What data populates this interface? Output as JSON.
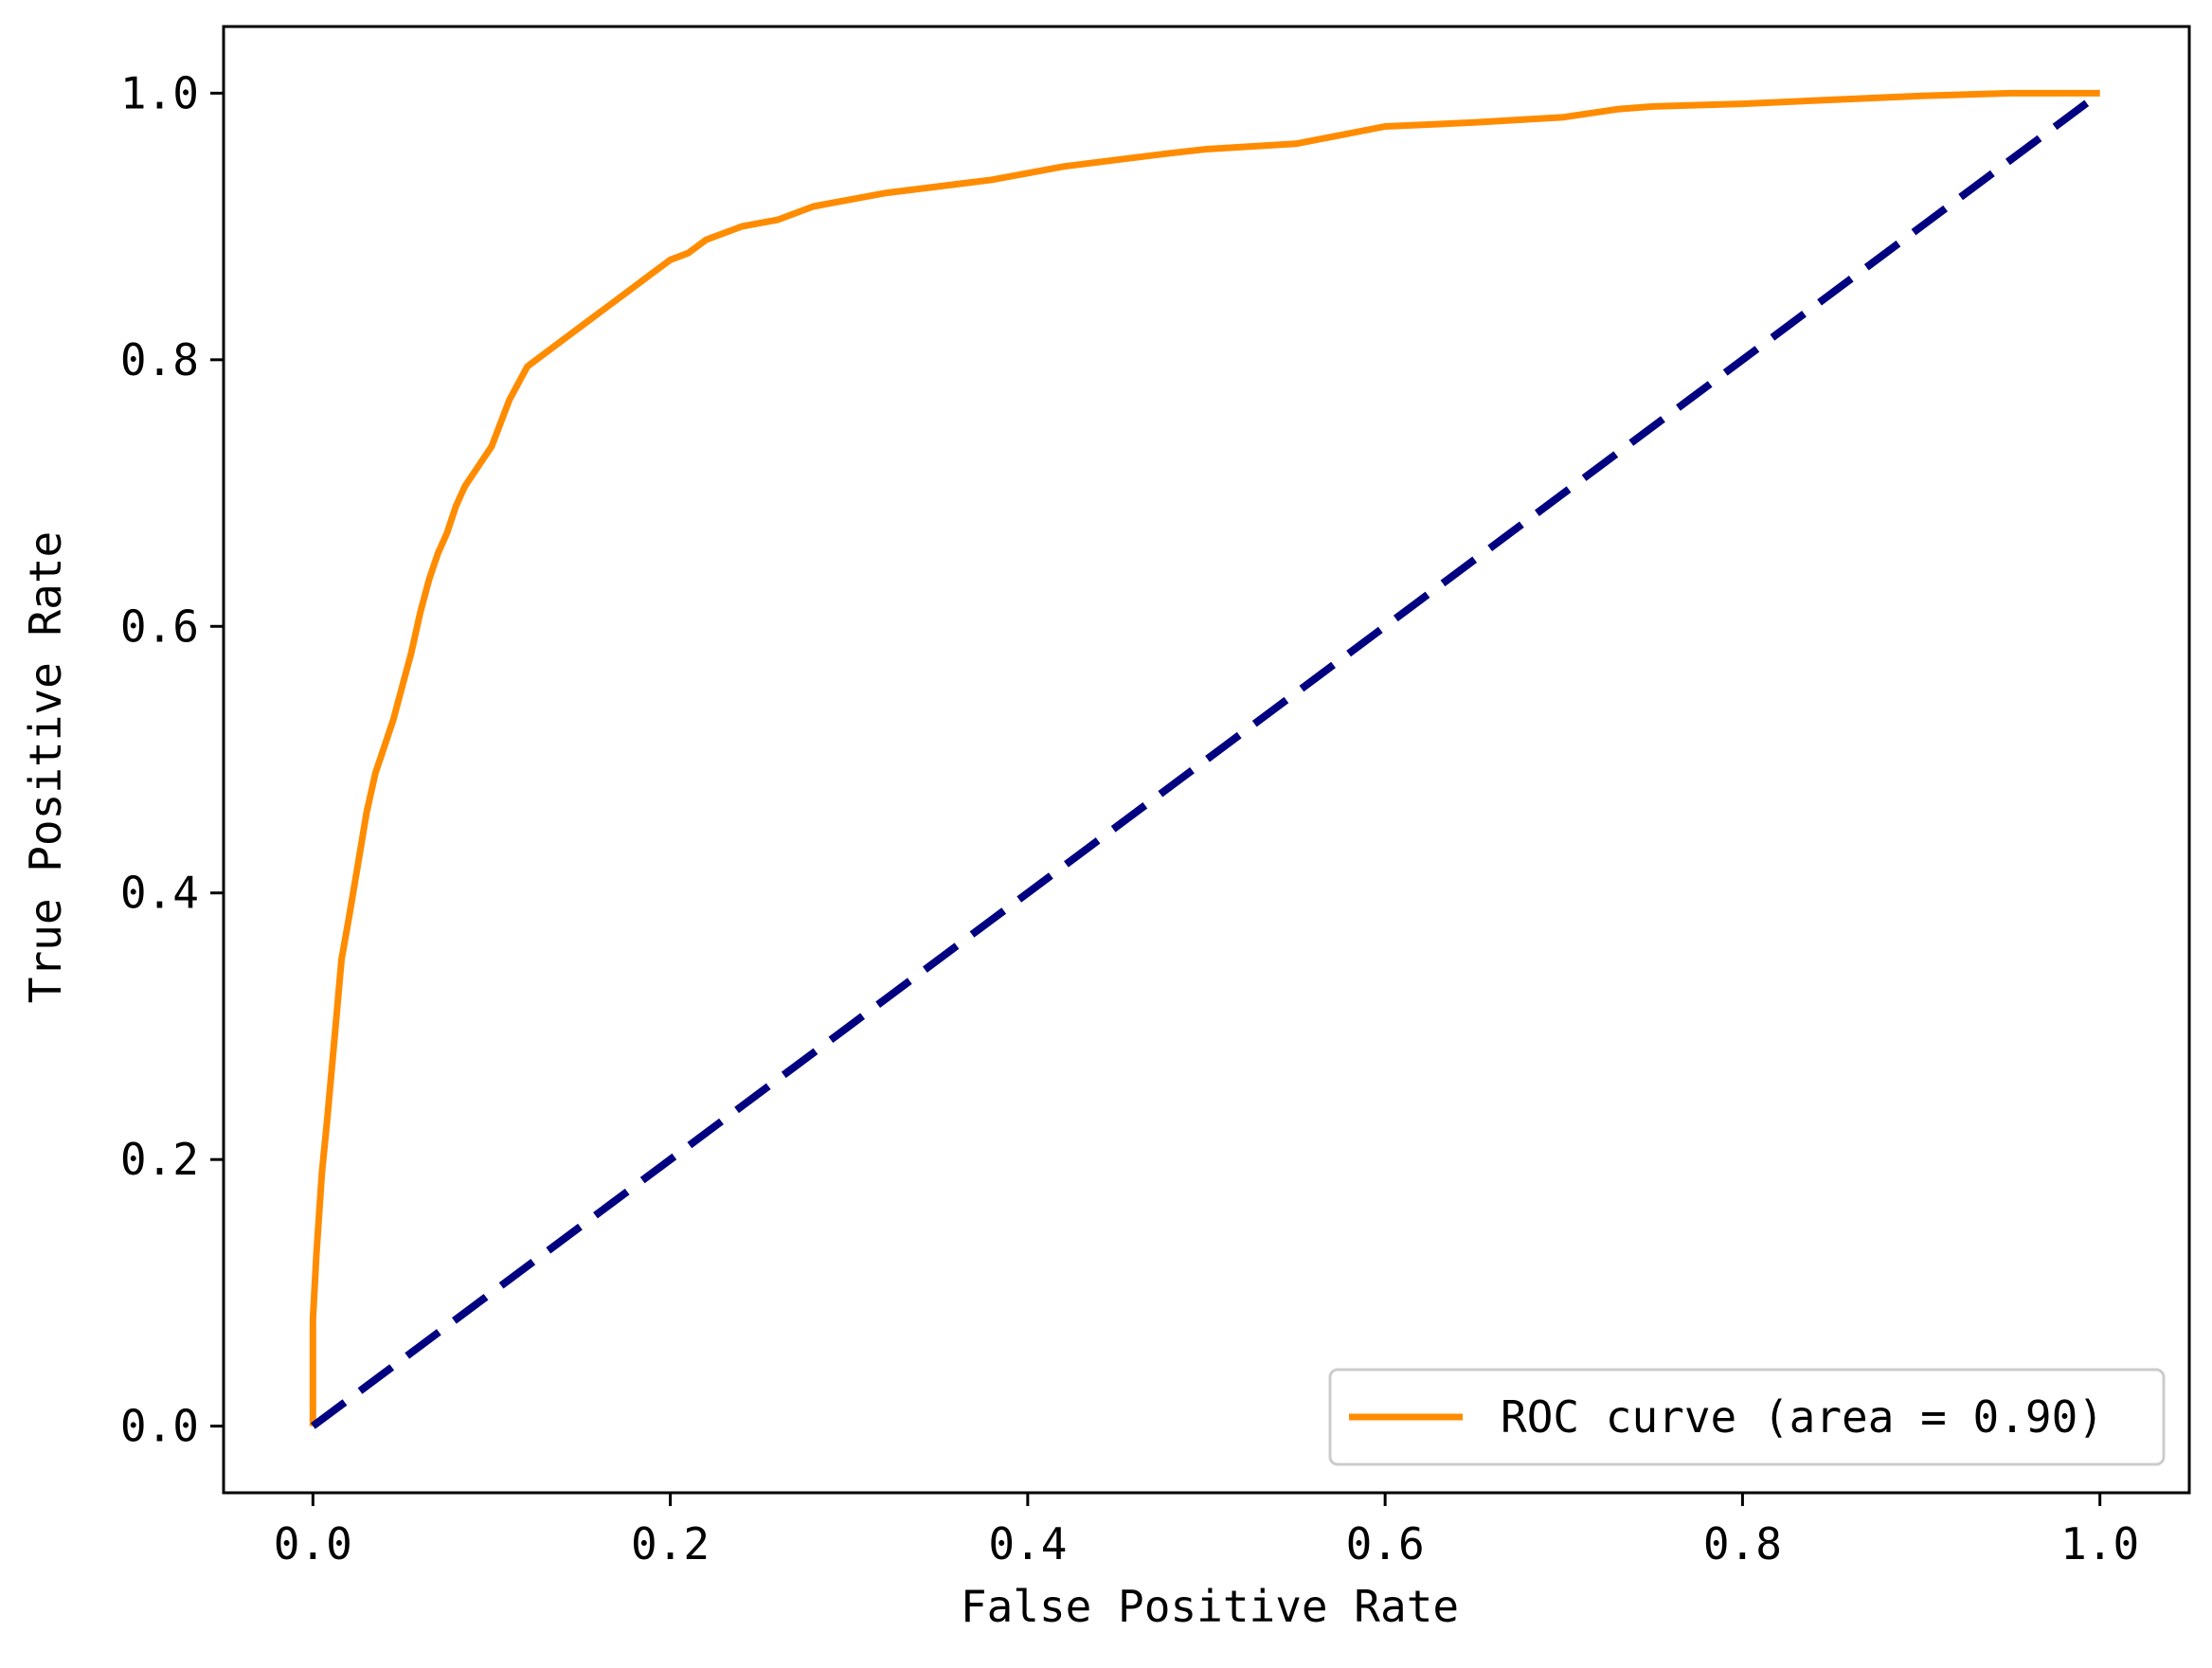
{
  "chart_data": {
    "type": "line",
    "title": "",
    "xlabel": "False Positive Rate",
    "ylabel": "True Positive Rate",
    "xlim": [
      -0.05,
      1.05
    ],
    "ylim": [
      -0.05,
      1.05
    ],
    "xticks": [
      "0.0",
      "0.2",
      "0.4",
      "0.6",
      "0.8",
      "1.0"
    ],
    "yticks": [
      "0.0",
      "0.2",
      "0.4",
      "0.6",
      "0.8",
      "1.0"
    ],
    "grid": false,
    "legend_position": "lower-right",
    "series": [
      {
        "name": "ROC curve (area = 0.90)",
        "color": "#ff8c00",
        "style": "solid",
        "x": [
          0.0,
          0.0,
          0.002,
          0.005,
          0.008,
          0.012,
          0.016,
          0.02,
          0.025,
          0.03,
          0.035,
          0.04,
          0.045,
          0.05,
          0.055,
          0.06,
          0.065,
          0.07,
          0.075,
          0.08,
          0.085,
          0.09,
          0.1,
          0.11,
          0.12,
          0.13,
          0.14,
          0.15,
          0.16,
          0.17,
          0.18,
          0.19,
          0.2,
          0.21,
          0.22,
          0.23,
          0.24,
          0.26,
          0.28,
          0.3,
          0.32,
          0.35,
          0.38,
          0.4,
          0.42,
          0.45,
          0.48,
          0.5,
          0.55,
          0.6,
          0.65,
          0.7,
          0.73,
          0.75,
          0.8,
          0.85,
          0.9,
          0.95,
          1.0
        ],
        "y": [
          0.0,
          0.08,
          0.13,
          0.19,
          0.23,
          0.29,
          0.35,
          0.38,
          0.42,
          0.46,
          0.49,
          0.51,
          0.53,
          0.555,
          0.58,
          0.61,
          0.635,
          0.655,
          0.67,
          0.69,
          0.705,
          0.715,
          0.735,
          0.77,
          0.795,
          0.805,
          0.815,
          0.825,
          0.835,
          0.845,
          0.855,
          0.865,
          0.875,
          0.88,
          0.89,
          0.895,
          0.9,
          0.905,
          0.915,
          0.92,
          0.925,
          0.93,
          0.935,
          0.94,
          0.945,
          0.95,
          0.955,
          0.958,
          0.962,
          0.975,
          0.978,
          0.982,
          0.988,
          0.99,
          0.992,
          0.995,
          0.998,
          1.0,
          1.0
        ]
      },
      {
        "name": "",
        "color": "#000080",
        "style": "dashed",
        "x": [
          0.0,
          1.0
        ],
        "y": [
          0.0,
          1.0
        ]
      }
    ]
  }
}
